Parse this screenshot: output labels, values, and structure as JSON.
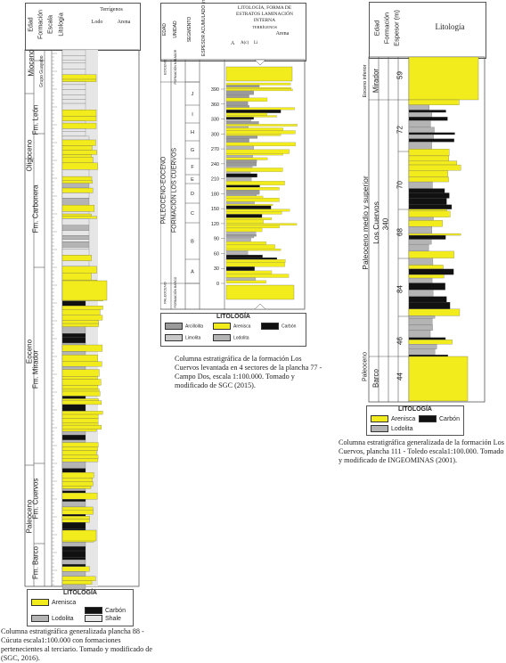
{
  "col88": {
    "hdr_edad": "Edad",
    "hdr_formacion": "Formación",
    "hdr_escala": "Escala",
    "hdr_litologia": "Litología",
    "hdr_terrigenos": "Terrígenos",
    "hdr_lodo": "Lodo",
    "hdr_arena": "Arena",
    "ages": [
      "Mioceno",
      "Oligoceno",
      "Eoceno",
      "Paleoceno"
    ],
    "formations": [
      "Grupo Guayabo",
      "Fm. León",
      "Fm. Carbonera",
      "Fm. Mirador",
      "Fm. Cuervos",
      "Fm. Barco"
    ],
    "legend_title": "LITOLOGÍA",
    "legend_items": [
      "Arenisca",
      "Carbón",
      "Lodolita",
      "Shale"
    ],
    "caption": "Columna estratigráfica generalizada plancha 88 - Cúcuta escala1:100.000 con formaciones pertenecientes al terciario. Tomado y modificado de (SGC, 2016)."
  },
  "col77": {
    "hdr_edad": "EDAD",
    "hdr_unidad": "UNIDAD",
    "hdr_segmento": "SEGMENTO",
    "hdr_espesor": "ESPESOR ACUMULADO (m)",
    "hdr_litologia": "LITOLOGÍA, FORMA DE ESTRATOS LAMINACIÓN INTERNA",
    "hdr_terrigenos": "TERRÍGENOS",
    "hdr_arena": "Arena",
    "hdr_a": "A",
    "hdr_arc": "A(c)",
    "hdr_li": "Li",
    "top_age": "EOCENO",
    "top_unit": "FORMACIÓN MIRADOR",
    "main_age": "PALEOCENO-EOCENO",
    "main_unit": "FORMACIÓN LOS CUERVOS",
    "bottom_age": "PALEOCENO",
    "bottom_unit": "FORMACIÓN BARCO",
    "segments": [
      "J",
      "I",
      "H",
      "G",
      "F",
      "E",
      "D",
      "C",
      "B",
      "A"
    ],
    "scale": [
      "390",
      "360",
      "330",
      "300",
      "270",
      "240",
      "210",
      "180",
      "150",
      "120",
      "90",
      "60",
      "30",
      "0"
    ],
    "legend_title": "LITOLOGÍA",
    "legend_items": [
      "Arcillolita",
      "Arenisca",
      "Carbón",
      "Limolita",
      "Lodolita"
    ],
    "caption": "Columna estratigráfica de la formación Los Cuervos levantada en 4 sectores de la plancha 77 - Campo Dos, escala 1:100.000. Tomado y modificado de SGC (2015)."
  },
  "col111": {
    "hdr_edad": "Edad",
    "hdr_formacion": "Formación",
    "hdr_espesor": "Espesor (m)",
    "hdr_litologia": "Litología",
    "ages": [
      "Eoceno inferior",
      "Paleoceno medio y superior",
      "Paleoceno"
    ],
    "formations": [
      "Mirador",
      "Los Cuervos",
      "Barco"
    ],
    "thicknesses": [
      "59",
      "72",
      "70",
      "340",
      "68",
      "84",
      "46",
      "44"
    ],
    "legend_title": "LITOLOGÍA",
    "legend_items": [
      "Arenisca",
      "Carbón",
      "Lodolita"
    ],
    "caption": "Columna estratigráfica generalizada de la formación Los Cuervos, plancha 111 - Toledo escala1:100.000. Tomado y modificado de INGEOMINAS (2001)."
  },
  "colors": {
    "sand": "#f3ec1c",
    "sand_light": "#f7f0a0",
    "mud": "#b4b4b4",
    "shale": "#e6e6e6",
    "coal": "#111111"
  }
}
